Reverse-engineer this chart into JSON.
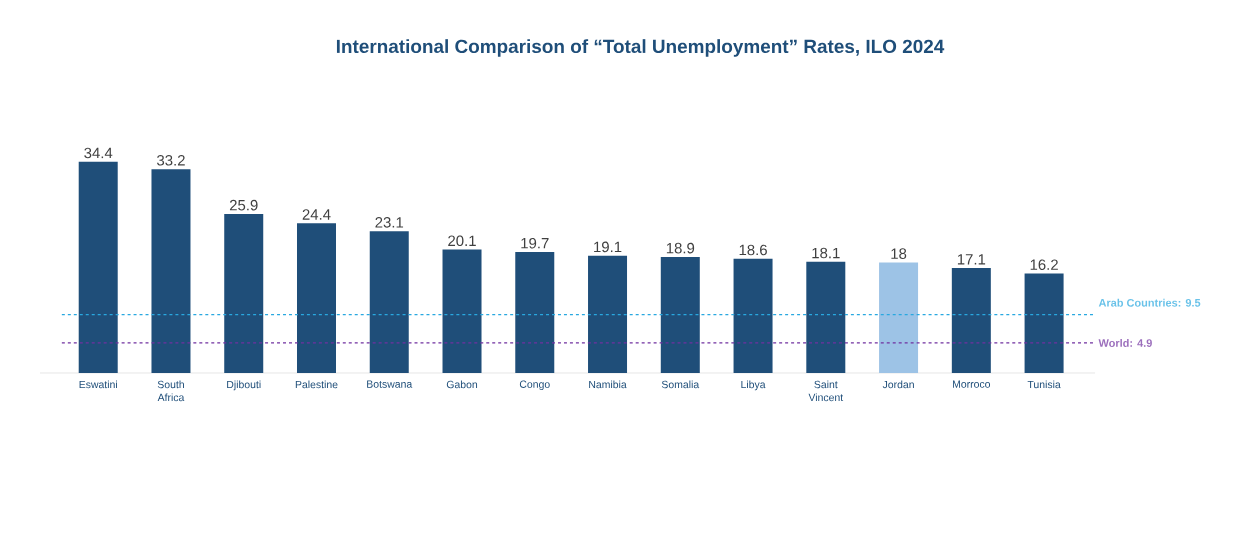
{
  "chart_data": {
    "type": "bar",
    "title": "International Comparison of “Total Unemployment” Rates, ILO 2024",
    "categories": [
      "Eswatini",
      "South Africa",
      "Djibouti",
      "Palestine",
      "Botswana",
      "Gabon",
      "Congo",
      "Namibia",
      "Somalia",
      "Libya",
      "Saint Vincent",
      "Jordan",
      "Morroco",
      "Tunisia"
    ],
    "values": [
      34.4,
      33.2,
      25.9,
      24.4,
      23.1,
      20.1,
      19.7,
      19.1,
      18.9,
      18.6,
      18.1,
      18,
      17.1,
      16.2
    ],
    "colors": [
      "#1f4e79",
      "#1f4e79",
      "#1f4e79",
      "#1f4e79",
      "#1f4e79",
      "#1f4e79",
      "#1f4e79",
      "#1f4e79",
      "#1f4e79",
      "#1f4e79",
      "#1f4e79",
      "#9dc3e6",
      "#1f4e79",
      "#1f4e79"
    ],
    "data_labels": true,
    "ref_lines": [
      {
        "axis": "y",
        "value": 9.5,
        "label": "Arab Countries: 9.5",
        "color": "#29a8e0",
        "line_style": "dashed"
      },
      {
        "axis": "y",
        "value": 4.9,
        "label": "World: 4.9",
        "color": "#7030a0",
        "line_style": "dashed"
      }
    ]
  }
}
